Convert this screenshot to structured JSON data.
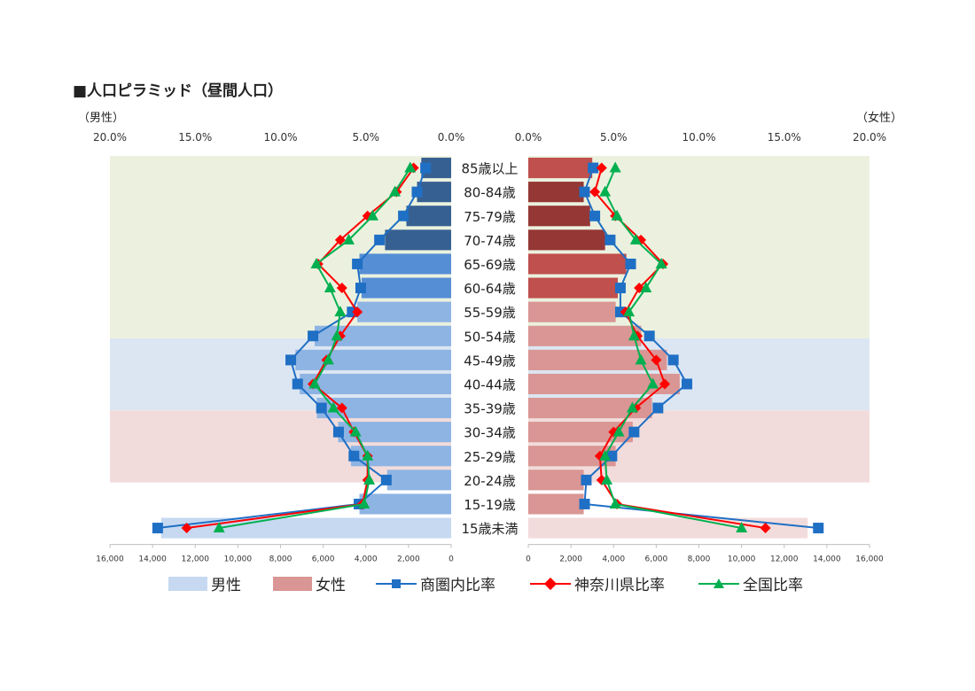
{
  "title": "■人口ピラミッド（昼間人口）",
  "side_labels": {
    "male": "（男性）",
    "female": "（女性）"
  },
  "chart_data": {
    "type": "population-pyramid",
    "categories": [
      "85歳以上",
      "80-84歳",
      "75-79歳",
      "70-74歳",
      "65-69歳",
      "60-64歳",
      "55-59歳",
      "50-54歳",
      "45-49歳",
      "40-44歳",
      "35-39歳",
      "30-34歳",
      "25-29歳",
      "20-24歳",
      "15-19歳",
      "15歳未満"
    ],
    "percent_ticks": [
      "20.0%",
      "15.0%",
      "10.0%",
      "5.0%",
      "0.0%"
    ],
    "percent_ticks_right": [
      "0.0%",
      "5.0%",
      "10.0%",
      "15.0%",
      "20.0%"
    ],
    "count_ticks_left": [
      "16,000",
      "14,000",
      "12,000",
      "10,000",
      "8,000",
      "6,000",
      "4,000",
      "2,000",
      "0"
    ],
    "count_ticks_right": [
      "0",
      "2,000",
      "4,000",
      "6,000",
      "8,000",
      "10,000",
      "12,000",
      "14,000",
      "16,000"
    ],
    "count_range": [
      0,
      16000
    ],
    "percent_range": [
      0,
      20
    ],
    "series": [
      {
        "name": "男性",
        "kind": "bar",
        "side": "left",
        "values": [
          1400,
          1600,
          2100,
          3100,
          4300,
          4200,
          4400,
          6400,
          7300,
          7100,
          6300,
          5300,
          4700,
          3000,
          4300,
          13600
        ]
      },
      {
        "name": "女性",
        "kind": "bar",
        "side": "right",
        "values": [
          3000,
          2600,
          2900,
          3600,
          4600,
          4200,
          4100,
          5300,
          6500,
          7100,
          5800,
          4900,
          4100,
          2600,
          2600,
          13100
        ]
      },
      {
        "name": "商圏内比率",
        "kind": "line",
        "marker": "square",
        "male_pct": [
          1.5,
          2.0,
          2.8,
          4.2,
          5.5,
          5.3,
          5.8,
          8.1,
          9.4,
          9.0,
          7.6,
          6.6,
          5.7,
          3.8,
          5.4,
          17.2
        ],
        "female_pct": [
          3.8,
          3.3,
          3.9,
          4.8,
          6.0,
          5.4,
          5.4,
          7.1,
          8.5,
          9.3,
          7.6,
          6.2,
          4.9,
          3.4,
          3.3,
          17.0
        ]
      },
      {
        "name": "神奈川県比率",
        "kind": "line",
        "marker": "diamond",
        "male_pct": [
          2.2,
          3.2,
          4.9,
          6.5,
          7.8,
          6.4,
          5.5,
          6.5,
          7.3,
          8.1,
          6.4,
          5.7,
          4.9,
          4.9,
          5.2,
          15.5
        ],
        "female_pct": [
          4.3,
          3.9,
          5.1,
          6.6,
          7.9,
          6.5,
          5.7,
          6.4,
          7.5,
          8.0,
          6.3,
          5.0,
          4.2,
          4.3,
          5.2,
          13.9
        ]
      },
      {
        "name": "全国比率",
        "kind": "line",
        "marker": "triangle",
        "male_pct": [
          2.4,
          3.3,
          4.6,
          6.0,
          7.9,
          7.1,
          6.5,
          6.7,
          7.2,
          8.0,
          6.9,
          5.6,
          4.9,
          4.8,
          5.1,
          13.6
        ],
        "female_pct": [
          5.1,
          4.5,
          5.2,
          6.3,
          7.8,
          6.9,
          5.9,
          6.2,
          6.6,
          7.3,
          6.1,
          5.3,
          4.5,
          4.6,
          5.1,
          12.5
        ]
      }
    ],
    "colors": {
      "male_base": "#8eb4e3",
      "male_light": "#c6d9f1",
      "male_mid": "#558ed5",
      "male_dark": "#376092",
      "female_base": "#d99694",
      "female_light": "#f2dcdb",
      "female_mid": "#c0504d",
      "female_dark": "#953735",
      "bg_green": "#ebf1de",
      "bg_blue": "#dce6f2",
      "bg_pink": "#f2dcdb",
      "line_trade": "#1f6fc5",
      "line_kanagawa": "#ff0000",
      "line_national": "#00b050"
    }
  },
  "legend": [
    {
      "label": "男性",
      "type": "swatch",
      "color": "#c6d9f1"
    },
    {
      "label": "女性",
      "type": "swatch",
      "color": "#d99694"
    },
    {
      "label": "商圏内比率",
      "type": "line",
      "color": "#1f6fc5",
      "marker": "square"
    },
    {
      "label": "神奈川県比率",
      "type": "line",
      "color": "#ff0000",
      "marker": "diamond"
    },
    {
      "label": "全国比率",
      "type": "line",
      "color": "#00b050",
      "marker": "triangle"
    }
  ]
}
